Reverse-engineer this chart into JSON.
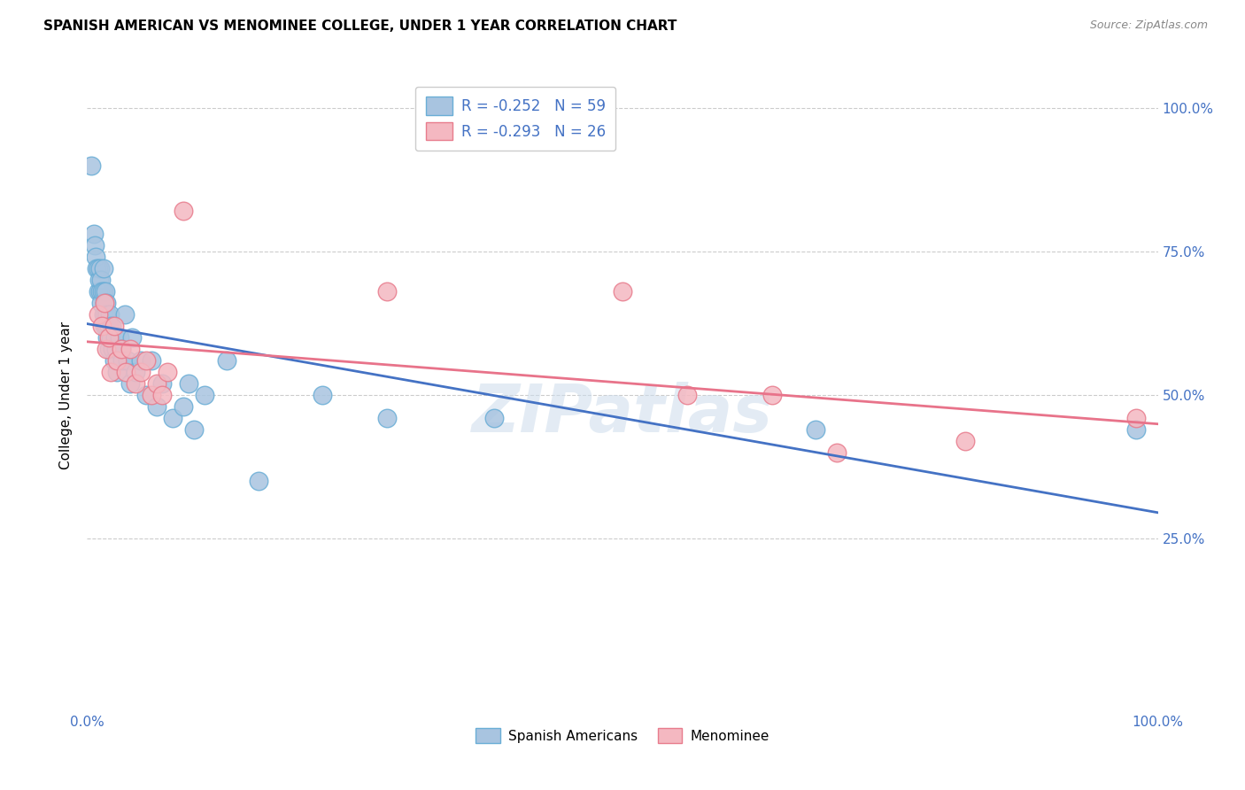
{
  "title": "SPANISH AMERICAN VS MENOMINEE COLLEGE, UNDER 1 YEAR CORRELATION CHART",
  "source": "Source: ZipAtlas.com",
  "ylabel": "College, Under 1 year",
  "blue_label": "Spanish Americans",
  "pink_label": "Menominee",
  "blue_R": -0.252,
  "blue_N": 59,
  "pink_R": -0.293,
  "pink_N": 26,
  "xlim": [
    0,
    1
  ],
  "ylim": [
    -0.05,
    1.05
  ],
  "blue_color": "#a8c4e0",
  "blue_edge": "#6aaed6",
  "pink_color": "#f4b8c1",
  "pink_edge": "#e87c8d",
  "blue_line_color": "#4472c4",
  "pink_line_color": "#e8738a",
  "watermark": "ZIPatlas",
  "tick_color": "#4472c4",
  "grid_color": "#cccccc",
  "blue_x": [
    0.004,
    0.006,
    0.007,
    0.008,
    0.009,
    0.01,
    0.01,
    0.011,
    0.012,
    0.012,
    0.013,
    0.013,
    0.014,
    0.015,
    0.015,
    0.015,
    0.016,
    0.016,
    0.017,
    0.017,
    0.018,
    0.018,
    0.019,
    0.019,
    0.02,
    0.02,
    0.021,
    0.022,
    0.023,
    0.024,
    0.025,
    0.026,
    0.027,
    0.028,
    0.03,
    0.032,
    0.033,
    0.035,
    0.038,
    0.04,
    0.042,
    0.045,
    0.05,
    0.055,
    0.06,
    0.065,
    0.07,
    0.08,
    0.09,
    0.095,
    0.1,
    0.11,
    0.13,
    0.16,
    0.22,
    0.28,
    0.38,
    0.68,
    0.98
  ],
  "blue_y": [
    0.9,
    0.78,
    0.76,
    0.74,
    0.72,
    0.68,
    0.72,
    0.7,
    0.68,
    0.72,
    0.7,
    0.66,
    0.68,
    0.72,
    0.68,
    0.64,
    0.66,
    0.62,
    0.68,
    0.64,
    0.62,
    0.66,
    0.64,
    0.6,
    0.62,
    0.58,
    0.64,
    0.6,
    0.62,
    0.58,
    0.56,
    0.6,
    0.58,
    0.54,
    0.6,
    0.58,
    0.56,
    0.64,
    0.56,
    0.52,
    0.6,
    0.54,
    0.56,
    0.5,
    0.56,
    0.48,
    0.52,
    0.46,
    0.48,
    0.52,
    0.44,
    0.5,
    0.56,
    0.35,
    0.5,
    0.46,
    0.46,
    0.44,
    0.44
  ],
  "pink_x": [
    0.01,
    0.014,
    0.016,
    0.018,
    0.02,
    0.022,
    0.025,
    0.028,
    0.032,
    0.036,
    0.04,
    0.045,
    0.05,
    0.055,
    0.06,
    0.065,
    0.07,
    0.075,
    0.09,
    0.28,
    0.5,
    0.56,
    0.64,
    0.7,
    0.82,
    0.98
  ],
  "pink_y": [
    0.64,
    0.62,
    0.66,
    0.58,
    0.6,
    0.54,
    0.62,
    0.56,
    0.58,
    0.54,
    0.58,
    0.52,
    0.54,
    0.56,
    0.5,
    0.52,
    0.5,
    0.54,
    0.82,
    0.68,
    0.68,
    0.5,
    0.5,
    0.4,
    0.42,
    0.46
  ]
}
